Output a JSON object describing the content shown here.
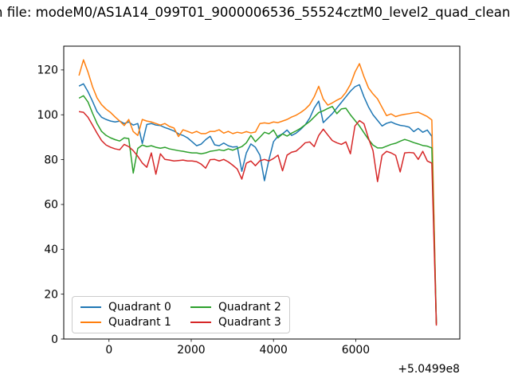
{
  "header": {
    "title_visible": "n file: modeM0/AS1A14_099T01_9000006536_55524cztM0_level2_quad_clean"
  },
  "chart_data": {
    "type": "line",
    "title": "n file: modeM0/AS1A14_099T01_9000006536_55524cztM0_level2_quad_clean",
    "xlabel": "",
    "ylabel": "",
    "x_offset_label": "+5.0499e8",
    "xlim": [
      -1100,
      8530
    ],
    "ylim": [
      0,
      130.6
    ],
    "xticks": [
      0,
      2000,
      4000,
      6000
    ],
    "yticks": [
      0,
      20,
      40,
      60,
      80,
      100,
      120
    ],
    "grid": false,
    "legend_position": "lower left",
    "x_start": -730,
    "x_step": 110,
    "series": [
      {
        "name": "Quadrant 0",
        "color": "#1f77b4",
        "values": [
          112.8,
          113.8,
          110.3,
          106.0,
          101.4,
          98.9,
          97.9,
          97.2,
          96.8,
          97.2,
          96.1,
          96.8,
          95.4,
          96.1,
          87.2,
          95.7,
          96.1,
          95.4,
          95.2,
          94.3,
          93.6,
          92.8,
          91.5,
          90.8,
          89.7,
          88.0,
          86.2,
          86.9,
          88.9,
          90.4,
          86.6,
          86.2,
          87.4,
          86.2,
          85.6,
          85.8,
          74.8,
          83.0,
          87.0,
          85.5,
          82.0,
          70.6,
          80.0,
          88.0,
          90.5,
          91.5,
          93.2,
          90.8,
          91.8,
          93.5,
          95.5,
          98.5,
          103.0,
          106.1,
          96.5,
          98.5,
          100.5,
          103.0,
          105.5,
          108.0,
          110.5,
          112.5,
          113.4,
          108.0,
          103.5,
          100.0,
          97.5,
          95.0,
          96.2,
          96.8,
          95.9,
          95.3,
          95.0,
          94.5,
          92.5,
          93.9,
          92.2,
          93.2,
          90.4,
          7.0
        ]
      },
      {
        "name": "Quadrant 1",
        "color": "#ff7f0e",
        "values": [
          117.5,
          124.5,
          119.0,
          112.5,
          107.5,
          104.5,
          102.5,
          101.0,
          99.0,
          97.2,
          95.2,
          97.9,
          92.5,
          90.8,
          97.9,
          97.2,
          96.8,
          96.1,
          95.4,
          96.1,
          94.8,
          94.1,
          90.3,
          93.3,
          92.6,
          91.8,
          92.6,
          91.6,
          91.6,
          92.6,
          92.6,
          93.3,
          91.8,
          92.6,
          91.6,
          92.2,
          91.8,
          92.5,
          91.9,
          92.3,
          96.1,
          96.4,
          96.1,
          96.8,
          96.5,
          97.2,
          97.9,
          99.0,
          99.8,
          101.0,
          102.5,
          104.5,
          108.0,
          112.7,
          107.0,
          104.3,
          105.3,
          106.5,
          107.5,
          110.0,
          113.5,
          119.0,
          122.8,
          117.0,
          112.0,
          109.3,
          107.1,
          103.3,
          99.6,
          100.4,
          99.2,
          99.8,
          100.2,
          100.5,
          100.9,
          101.1,
          100.2,
          99.2,
          97.7,
          6.5
        ]
      },
      {
        "name": "Quadrant 2",
        "color": "#2ca02c",
        "values": [
          107.4,
          108.5,
          105.7,
          100.7,
          96.1,
          92.6,
          90.8,
          89.7,
          88.9,
          88.3,
          89.7,
          89.4,
          74.0,
          85.0,
          86.5,
          85.8,
          86.2,
          85.5,
          85.1,
          85.5,
          84.8,
          84.4,
          84.0,
          83.7,
          83.3,
          83.0,
          83.0,
          82.6,
          83.0,
          83.7,
          84.0,
          84.4,
          84.0,
          84.8,
          84.2,
          85.0,
          85.8,
          87.5,
          90.8,
          88.0,
          90.0,
          92.2,
          91.5,
          93.2,
          89.7,
          91.5,
          90.5,
          91.8,
          92.8,
          94.0,
          95.5,
          97.0,
          99.0,
          101.0,
          101.8,
          102.8,
          103.7,
          100.5,
          102.6,
          102.9,
          100.0,
          97.5,
          95.0,
          92.0,
          89.0,
          86.5,
          85.2,
          85.2,
          86.0,
          86.8,
          87.3,
          88.2,
          89.0,
          88.4,
          87.6,
          87.0,
          86.3,
          86.0,
          85.2,
          6.8
        ]
      },
      {
        "name": "Quadrant 3",
        "color": "#d62728",
        "values": [
          101.4,
          101.1,
          98.9,
          95.4,
          91.8,
          88.5,
          86.5,
          85.5,
          84.8,
          84.4,
          86.8,
          85.8,
          84.0,
          81.5,
          78.5,
          76.6,
          83.0,
          73.5,
          82.6,
          80.1,
          79.8,
          79.4,
          79.6,
          79.8,
          79.4,
          79.4,
          79.1,
          78.0,
          76.2,
          80.0,
          80.1,
          79.4,
          80.1,
          79.0,
          77.5,
          75.8,
          71.3,
          78.4,
          79.4,
          77.3,
          79.5,
          80.1,
          79.4,
          80.5,
          82.0,
          75.0,
          82.0,
          83.3,
          83.8,
          85.5,
          87.5,
          87.9,
          85.8,
          90.8,
          93.6,
          91.0,
          88.5,
          87.5,
          86.8,
          87.9,
          82.6,
          95.0,
          97.4,
          96.0,
          89.5,
          84.0,
          70.2,
          81.9,
          83.7,
          83.0,
          81.9,
          74.5,
          83.0,
          83.2,
          83.0,
          80.1,
          83.7,
          79.4,
          78.4,
          6.0
        ]
      }
    ]
  }
}
